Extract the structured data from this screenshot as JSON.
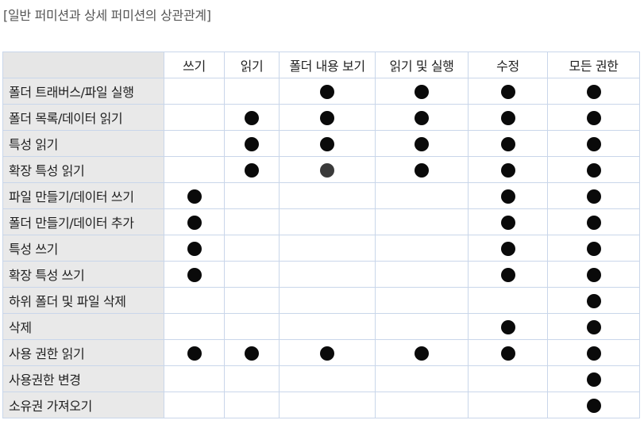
{
  "caption": "[일반 퍼미션과 상세 퍼미션의 상관관계]",
  "table": {
    "columns": [
      "쓰기",
      "읽기",
      "폴더 내용 보기",
      "읽기 및 실행",
      "수정",
      "모든 권한"
    ],
    "rows": [
      {
        "label": "폴더 트래버스/파일 실행",
        "marks": [
          false,
          false,
          true,
          true,
          true,
          true
        ]
      },
      {
        "label": "폴더 목록/데이터 읽기",
        "marks": [
          false,
          true,
          true,
          true,
          true,
          true
        ]
      },
      {
        "label": "특성 읽기",
        "marks": [
          false,
          true,
          true,
          true,
          true,
          true
        ]
      },
      {
        "label": "확장 특성 읽기",
        "marks": [
          false,
          true,
          true,
          true,
          true,
          true
        ]
      },
      {
        "label": "파일 만들기/데이터 쓰기",
        "marks": [
          true,
          false,
          false,
          false,
          true,
          true
        ]
      },
      {
        "label": "폴더 만들기/데이터 추가",
        "marks": [
          true,
          false,
          false,
          false,
          true,
          true
        ]
      },
      {
        "label": "특성 쓰기",
        "marks": [
          true,
          false,
          false,
          false,
          true,
          true
        ]
      },
      {
        "label": "확장 특성 쓰기",
        "marks": [
          true,
          false,
          false,
          false,
          true,
          true
        ]
      },
      {
        "label": "하위 폴더 및 파일 삭제",
        "marks": [
          false,
          false,
          false,
          false,
          false,
          true
        ]
      },
      {
        "label": "삭제",
        "marks": [
          false,
          false,
          false,
          false,
          true,
          true
        ]
      },
      {
        "label": "사용 권한 읽기",
        "marks": [
          true,
          true,
          true,
          true,
          true,
          true
        ]
      },
      {
        "label": "사용권한 변경",
        "marks": [
          false,
          false,
          false,
          false,
          false,
          true
        ]
      },
      {
        "label": "소유권 가져오기",
        "marks": [
          false,
          false,
          false,
          false,
          false,
          true
        ]
      }
    ]
  }
}
